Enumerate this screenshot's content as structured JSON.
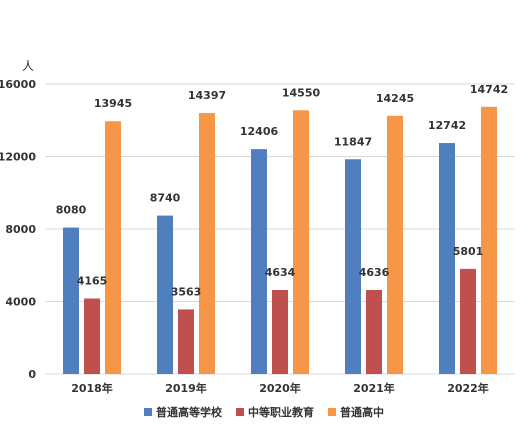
{
  "chart_data": {
    "type": "bar",
    "unit_label": "人",
    "categories": [
      "2018年",
      "2019年",
      "2020年",
      "2021年",
      "2022年"
    ],
    "series": [
      {
        "name": "普通高等学校",
        "color": "#4f7fbf",
        "values": [
          8080,
          8740,
          12406,
          11847,
          12742
        ]
      },
      {
        "name": "中等职业教育",
        "color": "#c0504d",
        "values": [
          4165,
          3563,
          4634,
          4636,
          5801
        ]
      },
      {
        "name": "普通高中",
        "color": "#f79646",
        "values": [
          13945,
          14397,
          14550,
          14245,
          14742
        ]
      }
    ],
    "y_ticks": [
      "0",
      "4000",
      "8000",
      "12000",
      "16000"
    ],
    "ylim": [
      0,
      16000
    ],
    "grid": true,
    "legend_position": "bottom"
  }
}
